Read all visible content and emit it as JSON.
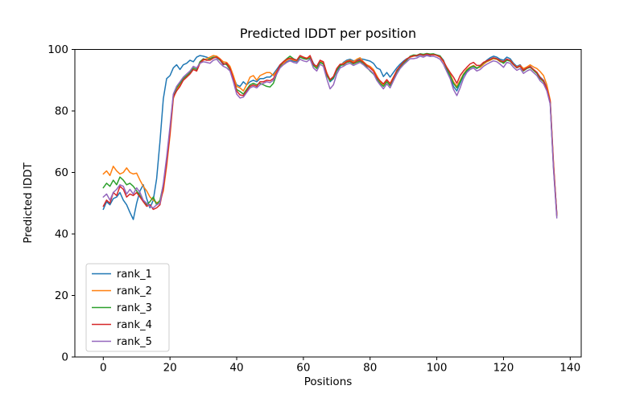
{
  "chart_data": {
    "type": "line",
    "title": "Predicted lDDT per position",
    "xlabel": "Positions",
    "ylabel": "Predicted lDDT",
    "x_description": "residue position; each series value is sampled at integer positions 0..136 (value index = position)",
    "xlim": [
      -8.5,
      143.3
    ],
    "ylim": [
      0,
      100
    ],
    "x_ticks": [
      0,
      20,
      40,
      60,
      80,
      100,
      120,
      140
    ],
    "y_ticks": [
      0,
      20,
      40,
      60,
      80,
      100
    ],
    "grid": false,
    "legend_position": "lower left",
    "axis_color": "#000000",
    "background_color": "#ffffff",
    "series": [
      {
        "name": "rank_1",
        "color": "#1f77b4",
        "values": [
          48,
          50.5,
          49.5,
          51.5,
          52,
          53.5,
          51,
          49.5,
          47,
          44.7,
          50,
          54,
          56,
          51.5,
          48.5,
          51,
          58,
          70,
          84,
          90.5,
          91.5,
          94,
          95,
          93.5,
          95,
          95.5,
          96.5,
          96,
          97.5,
          98,
          97.8,
          97.5,
          97,
          97.5,
          97.3,
          96.5,
          95,
          95.5,
          94,
          91,
          88.5,
          88,
          89.5,
          88.5,
          89.5,
          90,
          89.5,
          90.5,
          90.5,
          91,
          91,
          92,
          93.5,
          95,
          95.5,
          96,
          96.5,
          96.2,
          96,
          97.5,
          97.2,
          97,
          97.8,
          95.5,
          94,
          96,
          95.5,
          92,
          89.5,
          90.5,
          93,
          94.5,
          95.8,
          96.5,
          96.8,
          96.3,
          96.5,
          97,
          96.8,
          96.5,
          96.2,
          95.5,
          94,
          93.5,
          91.2,
          92.5,
          91,
          92.5,
          94,
          95.2,
          96.2,
          97,
          97.5,
          98,
          97.8,
          98.3,
          98,
          98.4,
          98.1,
          98.5,
          98.2,
          97.8,
          96.5,
          93.5,
          91,
          88,
          86.5,
          89,
          91.5,
          93,
          94,
          94.5,
          93.8,
          94.5,
          95.5,
          96.5,
          97.3,
          97.8,
          97.5,
          96.8,
          96.5,
          97.5,
          97,
          95.5,
          94.5,
          95,
          93.5,
          94,
          94.5,
          93.5,
          92.5,
          91,
          90,
          87.5,
          82.5,
          62,
          46.5
        ]
      },
      {
        "name": "rank_2",
        "color": "#ff7f0e",
        "values": [
          59.5,
          60.5,
          59,
          62,
          60.5,
          59.5,
          60,
          61.5,
          60,
          59.5,
          59.8,
          57.5,
          55.5,
          54,
          52,
          51,
          50.2,
          50.5,
          54,
          62,
          72,
          84,
          87,
          88.5,
          90,
          91,
          92.5,
          93.5,
          93,
          95.5,
          96.5,
          97,
          97.5,
          98,
          97.8,
          97,
          96,
          95.8,
          94.5,
          91.5,
          88,
          87.5,
          86.5,
          88.5,
          91,
          91.5,
          90,
          91.5,
          92,
          92.5,
          92.5,
          91.5,
          93,
          94.5,
          95.5,
          96.5,
          97,
          96.5,
          96.3,
          97.8,
          97.5,
          97.2,
          97.5,
          95,
          94.2,
          96.2,
          95.8,
          92.5,
          90,
          91,
          93.5,
          95,
          95.5,
          96.2,
          96.5,
          96,
          96.8,
          97.3,
          96,
          95,
          94.5,
          93.5,
          91.5,
          89.5,
          88.5,
          90,
          89,
          91,
          93,
          94.5,
          95.8,
          96.8,
          97.5,
          97.8,
          98,
          98.5,
          98.2,
          98.6,
          98.3,
          98.4,
          98,
          97.5,
          96,
          94,
          92,
          89.5,
          88,
          90,
          92,
          93.5,
          94.3,
          94.8,
          94,
          94.2,
          95.2,
          96,
          96.5,
          97,
          96.8,
          96,
          95.8,
          96.8,
          96.5,
          95.2,
          94.2,
          94.8,
          93.8,
          94.3,
          95,
          94.3,
          93.8,
          92.8,
          91.5,
          88.5,
          83.5,
          63,
          46
        ]
      },
      {
        "name": "rank_3",
        "color": "#2ca02c",
        "values": [
          55,
          56.5,
          55.5,
          57.5,
          56,
          58.5,
          57.5,
          56,
          56.5,
          55.5,
          54,
          52.5,
          50.5,
          49.5,
          50.5,
          52,
          49.5,
          51,
          56,
          64,
          74,
          85,
          87.5,
          89,
          90.5,
          91.5,
          92.5,
          94,
          93.5,
          96,
          97,
          96.5,
          97,
          97.5,
          97.5,
          96.5,
          95.5,
          95,
          93.5,
          90,
          87,
          86.3,
          85.5,
          87,
          88.5,
          89,
          88.5,
          89,
          88.5,
          88,
          87.8,
          89,
          92,
          94.5,
          96,
          97,
          97.8,
          97,
          96.5,
          97.5,
          97,
          96.8,
          97.2,
          94.8,
          93.8,
          95.8,
          95.2,
          91.5,
          89.8,
          90.8,
          93.2,
          94.8,
          95,
          95.8,
          96,
          95.3,
          95.8,
          96.2,
          95.5,
          94.3,
          93,
          92,
          90.5,
          89,
          88,
          89.5,
          88.2,
          90.5,
          92.8,
          94.2,
          95.5,
          96.5,
          97.8,
          98.2,
          98.1,
          98.6,
          98.4,
          98.7,
          98.5,
          98.6,
          98.2,
          97.9,
          96.3,
          93.8,
          91.5,
          89,
          87.5,
          89.5,
          91.8,
          93.2,
          94.1,
          94.6,
          93.9,
          94.6,
          95.6,
          96.2,
          96.7,
          97.2,
          96.9,
          96.2,
          95.5,
          96.5,
          96.2,
          95,
          94,
          94.5,
          93,
          93.8,
          94.2,
          93.2,
          92.2,
          90.5,
          89.5,
          87,
          82.8,
          61.5,
          45.8
        ]
      },
      {
        "name": "rank_4",
        "color": "#d62728",
        "values": [
          49,
          51,
          50,
          53.5,
          52.5,
          55.5,
          54.5,
          52,
          53,
          52.5,
          53.5,
          52,
          50.5,
          49,
          49.5,
          48,
          48.5,
          49.5,
          55,
          63,
          73,
          84.5,
          86.5,
          88,
          90,
          91,
          92,
          93.5,
          93,
          95.5,
          96.8,
          96.5,
          96.5,
          97.2,
          97.5,
          96.8,
          95.2,
          95.5,
          93.8,
          90.5,
          86.5,
          85.2,
          85,
          86.5,
          88,
          88.5,
          88,
          89.5,
          89.5,
          90,
          89.8,
          90.5,
          92.5,
          95,
          96,
          96.8,
          97.2,
          96.8,
          96.5,
          98,
          97.5,
          97,
          98,
          95.2,
          94.5,
          96.5,
          96,
          92.2,
          90.2,
          91.2,
          93.8,
          95.2,
          95.2,
          96,
          96.3,
          95.6,
          96.2,
          96.6,
          95.8,
          94.8,
          94,
          93,
          91,
          89.8,
          88.8,
          90.2,
          88.8,
          90.8,
          93.2,
          94.6,
          95.9,
          96.9,
          97.6,
          97.9,
          98,
          98.4,
          98.1,
          98.5,
          98.2,
          98.3,
          98.1,
          97.6,
          96.2,
          94.2,
          92.5,
          91,
          89,
          91.5,
          93,
          94.2,
          95.3,
          95.8,
          94.8,
          94.8,
          95.8,
          96.3,
          96.8,
          97.3,
          97,
          96.4,
          96,
          96.9,
          96.4,
          95.1,
          94.1,
          94.6,
          93.2,
          94,
          94.4,
          93.5,
          92.6,
          90.8,
          89.8,
          87.2,
          83,
          62.5,
          46.2
        ]
      },
      {
        "name": "rank_5",
        "color": "#9467bd",
        "values": [
          52,
          53,
          51,
          53.5,
          54.5,
          56,
          55.5,
          53,
          54.5,
          53,
          55,
          53.5,
          51,
          50,
          49,
          48.5,
          49.5,
          50,
          56.5,
          65,
          75,
          85.5,
          88,
          89.5,
          91,
          92,
          93,
          94.5,
          94,
          95.5,
          96,
          95.8,
          95.5,
          96.5,
          96.8,
          95.5,
          94.5,
          94,
          93,
          89.5,
          85.5,
          84.2,
          84.5,
          86,
          87.5,
          88,
          87.5,
          88.5,
          89,
          89.5,
          89.2,
          90,
          92,
          94,
          95,
          95.8,
          96.3,
          95.8,
          95.5,
          96.8,
          96.3,
          96,
          96.8,
          94,
          93,
          95.2,
          94.5,
          90.5,
          87.2,
          88.5,
          92,
          94,
          94.5,
          95.2,
          95.5,
          94.8,
          95.3,
          95.8,
          95,
          94,
          93.2,
          92.2,
          90,
          88.5,
          87.2,
          88.8,
          87.5,
          89.8,
          92,
          93.8,
          95,
          96,
          97,
          97,
          97.2,
          97.8,
          97.5,
          98,
          97.7,
          97.8,
          97.4,
          96.8,
          95.2,
          92.8,
          90.5,
          87,
          85,
          87.5,
          90.5,
          92.5,
          93.5,
          94,
          93,
          93.5,
          94.5,
          95.2,
          95.8,
          96.3,
          96,
          95.2,
          94.2,
          95.8,
          95.5,
          94.2,
          93.2,
          93.8,
          92.2,
          93,
          93.5,
          92.5,
          91.5,
          89.8,
          88.8,
          86.5,
          82.2,
          61,
          45.2
        ]
      }
    ]
  }
}
